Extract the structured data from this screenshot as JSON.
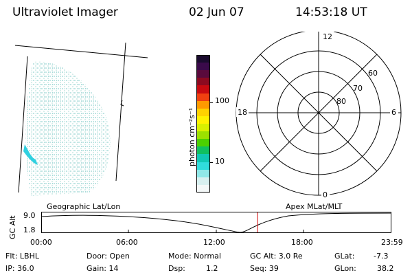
{
  "header": {
    "instrument": "Ultraviolet Imager",
    "date": "02 Jun 07",
    "time": "14:53:18 UT"
  },
  "colorbar": {
    "unit_label": "photon cm⁻²s⁻¹",
    "tick_labels": [
      "100",
      "10"
    ],
    "colors": [
      "#1a0b2e",
      "#3a0a4a",
      "#5a0a3c",
      "#8c0a20",
      "#c80a10",
      "#f04010",
      "#ff9a00",
      "#ffd200",
      "#fff200",
      "#d8f000",
      "#9ce000",
      "#4cd000",
      "#10c060",
      "#10c8b4",
      "#30dcdc",
      "#90e8e8",
      "#d8f0f0",
      "#f4f8f8"
    ]
  },
  "polar_plot": {
    "mlt_labels": {
      "top": "12",
      "right": "6",
      "bottom": "0",
      "left": "18"
    },
    "lat_labels": [
      "60",
      "70",
      "80"
    ]
  },
  "timeline": {
    "left_title": "Geographic Lat/Lon",
    "right_title": "Apex MLat/MLT",
    "y_axis_label": "GC Alt",
    "y_ticks": [
      "9.0",
      "1.8"
    ],
    "x_ticks": [
      "00:00",
      "06:00",
      "12:00",
      "18:00",
      "23:59"
    ],
    "marker_color": "#d00000"
  },
  "status": {
    "flt": "Flt: LBHL",
    "ip": "IP: 36.0",
    "door": "Door: Open",
    "gain": "Gain: 14",
    "mode": "Mode: Normal",
    "dsp_label": "Dsp:",
    "dsp_value": "1.2",
    "gc_alt": "GC Alt: 3.0 Re",
    "seq": "Seq: 39",
    "glat_label": "GLat:",
    "glat_value": "-7.3",
    "glon_label": "GLon:",
    "glon_value": "38.2"
  }
}
